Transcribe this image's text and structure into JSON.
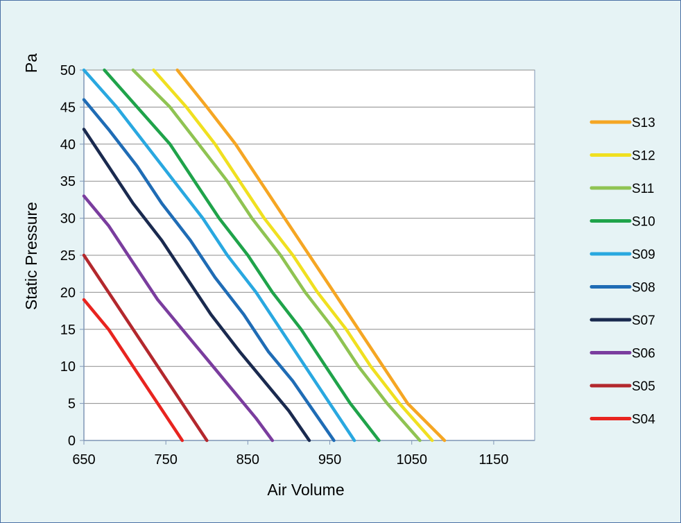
{
  "chart_data": {
    "type": "line",
    "title": "",
    "xlabel": "Air Volume",
    "ylabel": "Static Pressure",
    "yunit": "Pa",
    "xlim": [
      650,
      1200
    ],
    "ylim": [
      0,
      50
    ],
    "xticks": [
      650,
      750,
      850,
      950,
      1050,
      1150
    ],
    "yticks": [
      0,
      5,
      10,
      15,
      20,
      25,
      30,
      35,
      40,
      45,
      50
    ],
    "grid": "horizontal",
    "legend_position": "right",
    "series": [
      {
        "name": "S13",
        "color": "#f5a623",
        "points": [
          [
            764,
            50
          ],
          [
            800,
            45
          ],
          [
            835,
            40
          ],
          [
            865,
            35
          ],
          [
            895,
            30
          ],
          [
            925,
            25
          ],
          [
            955,
            20
          ],
          [
            985,
            15
          ],
          [
            1015,
            10
          ],
          [
            1045,
            5
          ],
          [
            1090,
            0
          ]
        ]
      },
      {
        "name": "S12",
        "color": "#f0e020",
        "points": [
          [
            735,
            50
          ],
          [
            775,
            45
          ],
          [
            810,
            40
          ],
          [
            840,
            35
          ],
          [
            870,
            30
          ],
          [
            905,
            25
          ],
          [
            935,
            20
          ],
          [
            970,
            15
          ],
          [
            1000,
            10
          ],
          [
            1035,
            5
          ],
          [
            1075,
            0
          ]
        ]
      },
      {
        "name": "S11",
        "color": "#8fc352",
        "points": [
          [
            710,
            50
          ],
          [
            755,
            45
          ],
          [
            790,
            40
          ],
          [
            825,
            35
          ],
          [
            855,
            30
          ],
          [
            890,
            25
          ],
          [
            920,
            20
          ],
          [
            955,
            15
          ],
          [
            985,
            10
          ],
          [
            1020,
            5
          ],
          [
            1060,
            0
          ]
        ]
      },
      {
        "name": "S10",
        "color": "#1fa34a",
        "points": [
          [
            675,
            50
          ],
          [
            715,
            45
          ],
          [
            755,
            40
          ],
          [
            785,
            35
          ],
          [
            815,
            30
          ],
          [
            850,
            25
          ],
          [
            880,
            20
          ],
          [
            915,
            15
          ],
          [
            945,
            10
          ],
          [
            975,
            5
          ],
          [
            1010,
            0
          ]
        ]
      },
      {
        "name": "S09",
        "color": "#29a8e0",
        "points": [
          [
            650,
            50
          ],
          [
            690,
            45
          ],
          [
            725,
            40
          ],
          [
            760,
            35
          ],
          [
            795,
            30
          ],
          [
            825,
            25
          ],
          [
            860,
            20
          ],
          [
            890,
            15
          ],
          [
            920,
            10
          ],
          [
            950,
            5
          ],
          [
            980,
            0
          ]
        ]
      },
      {
        "name": "S08",
        "color": "#1f6cb5",
        "points": [
          [
            650,
            46
          ],
          [
            680,
            42
          ],
          [
            715,
            37
          ],
          [
            745,
            32
          ],
          [
            780,
            27
          ],
          [
            810,
            22
          ],
          [
            845,
            17
          ],
          [
            875,
            12
          ],
          [
            905,
            8
          ],
          [
            930,
            4
          ],
          [
            955,
            0
          ]
        ]
      },
      {
        "name": "S07",
        "color": "#1a2a4f",
        "points": [
          [
            650,
            42
          ],
          [
            680,
            37
          ],
          [
            710,
            32
          ],
          [
            745,
            27
          ],
          [
            775,
            22
          ],
          [
            805,
            17
          ],
          [
            840,
            12
          ],
          [
            870,
            8
          ],
          [
            900,
            4
          ],
          [
            925,
            0
          ]
        ]
      },
      {
        "name": "S06",
        "color": "#7a3d9e",
        "points": [
          [
            650,
            33
          ],
          [
            680,
            29
          ],
          [
            710,
            24
          ],
          [
            740,
            19
          ],
          [
            770,
            15
          ],
          [
            800,
            11
          ],
          [
            830,
            7
          ],
          [
            860,
            3
          ],
          [
            880,
            0
          ]
        ]
      },
      {
        "name": "S05",
        "color": "#b3282d",
        "points": [
          [
            650,
            25
          ],
          [
            680,
            20
          ],
          [
            710,
            15
          ],
          [
            740,
            10
          ],
          [
            770,
            5
          ],
          [
            800,
            0
          ]
        ]
      },
      {
        "name": "S04",
        "color": "#e8241f",
        "points": [
          [
            650,
            19
          ],
          [
            680,
            15
          ],
          [
            710,
            10
          ],
          [
            740,
            5
          ],
          [
            770,
            0
          ]
        ]
      }
    ]
  }
}
